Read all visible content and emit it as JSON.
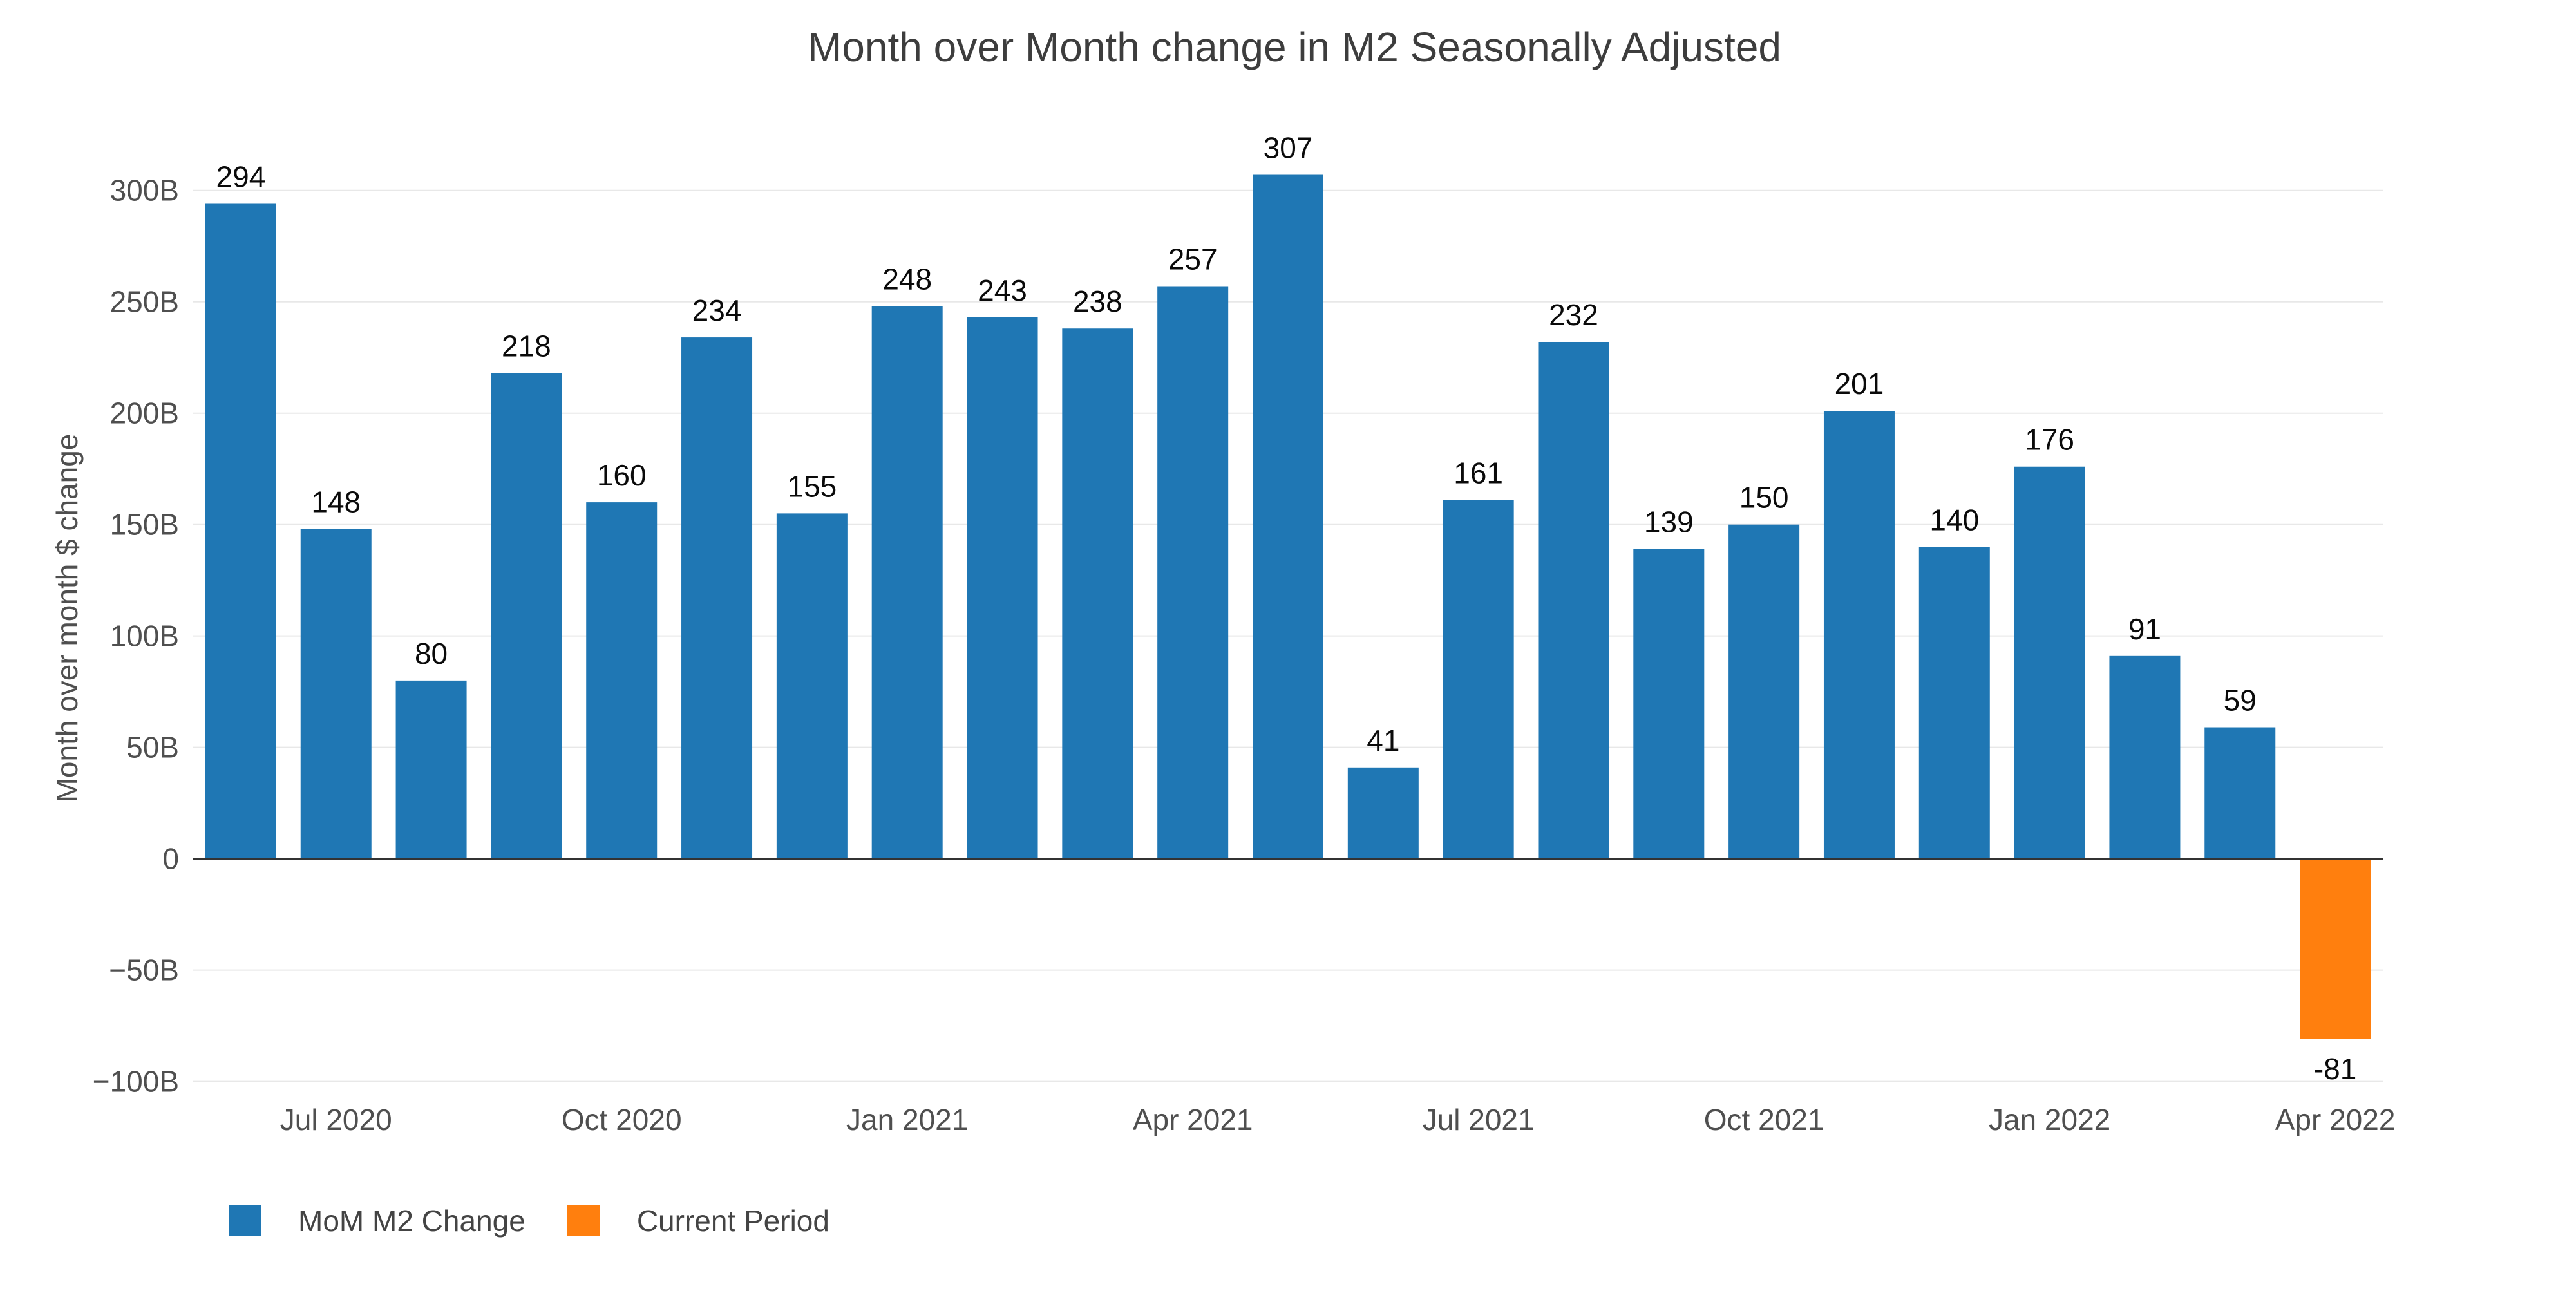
{
  "background": "#ffffff",
  "chart_data": {
    "type": "bar",
    "title": "Month over Month change in M2 Seasonally Adjusted",
    "xlabel": "",
    "ylabel": "Month over month $ change",
    "ylim": [
      -103,
      319
    ],
    "grid": true,
    "legend_position": "bottom-left",
    "values": [
      294,
      148,
      80,
      218,
      160,
      234,
      155,
      248,
      243,
      238,
      257,
      307,
      41,
      161,
      232,
      139,
      150,
      201,
      140,
      176,
      91,
      59,
      -81
    ],
    "bar_labels": [
      "294",
      "148",
      "80",
      "218",
      "160",
      "234",
      "155",
      "248",
      "243",
      "238",
      "257",
      "307",
      "41",
      "161",
      "232",
      "139",
      "150",
      "201",
      "140",
      "176",
      "91",
      "59",
      "-81"
    ],
    "current_period_index": 22,
    "xticks": [
      {
        "index": 1,
        "label": "Jul 2020"
      },
      {
        "index": 4,
        "label": "Oct 2020"
      },
      {
        "index": 7,
        "label": "Jan 2021"
      },
      {
        "index": 10,
        "label": "Apr 2021"
      },
      {
        "index": 13,
        "label": "Jul 2021"
      },
      {
        "index": 16,
        "label": "Oct 2021"
      },
      {
        "index": 19,
        "label": "Jan 2022"
      },
      {
        "index": 22,
        "label": "Apr 2022"
      }
    ],
    "yticks": [
      {
        "value": 300,
        "label": "300B"
      },
      {
        "value": 250,
        "label": "250B"
      },
      {
        "value": 200,
        "label": "200B"
      },
      {
        "value": 150,
        "label": "150B"
      },
      {
        "value": 100,
        "label": "100B"
      },
      {
        "value": 50,
        "label": "50B"
      },
      {
        "value": 0,
        "label": "0"
      },
      {
        "value": -50,
        "label": "−50B"
      },
      {
        "value": -100,
        "label": "−100B"
      }
    ],
    "series": [
      {
        "name": "MoM M2 Change",
        "color": "#1f77b4"
      },
      {
        "name": "Current Period",
        "color": "#ff7f0e"
      }
    ]
  }
}
